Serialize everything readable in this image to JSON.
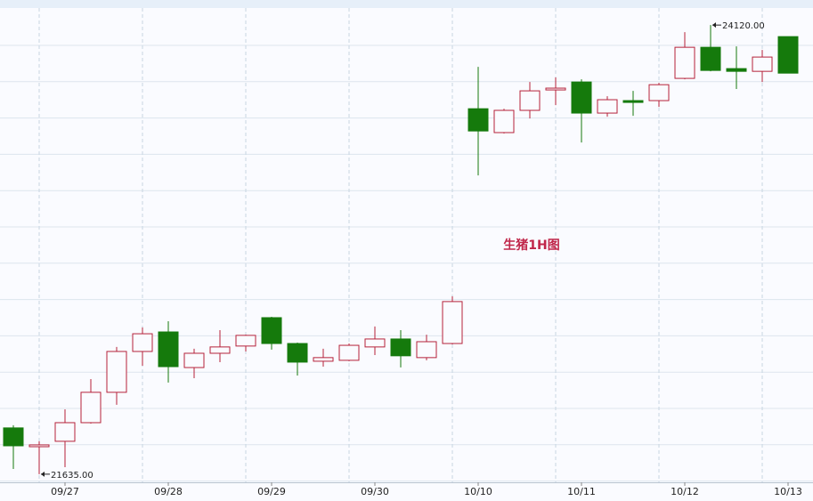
{
  "chart_data": {
    "type": "candlestick",
    "title": "生猪1H图",
    "categories": [
      null,
      null,
      "09/27",
      null,
      null,
      null,
      "09/28",
      null,
      null,
      null,
      "09/29",
      null,
      null,
      null,
      "09/30",
      null,
      null,
      null,
      "10/10",
      null,
      null,
      null,
      "10/11",
      null,
      null,
      null,
      "10/12",
      null,
      null,
      null,
      "10/13"
    ],
    "series": [
      {
        "open": [
          21891,
          21787,
          21817,
          21920,
          22088,
          22314,
          22422,
          22225,
          22304,
          22344,
          22501,
          22358,
          22260,
          22265,
          22339,
          22383,
          22280,
          22358,
          23657,
          23525,
          23648,
          23761,
          23805,
          23633,
          23702,
          23702,
          23825,
          23997,
          23879,
          23864,
          24056
        ],
        "high": [
          21906,
          21817,
          21994,
          22161,
          22339,
          22447,
          22481,
          22329,
          22432,
          22407,
          22506,
          22363,
          22329,
          22358,
          22452,
          22432,
          22407,
          22619,
          23889,
          23657,
          23805,
          23830,
          23820,
          23726,
          23756,
          23800,
          24081,
          24120,
          24002,
          23982,
          24056
        ],
        "low": [
          21664,
          21635,
          21674,
          21915,
          22019,
          22235,
          22142,
          22166,
          22255,
          22314,
          22324,
          22181,
          22230,
          22260,
          22294,
          22226,
          22265,
          22353,
          23288,
          23520,
          23603,
          23677,
          23470,
          23613,
          23618,
          23667,
          23820,
          23864,
          23766,
          23805,
          23854
        ],
        "close": [
          21792,
          21797,
          21920,
          22088,
          22314,
          22412,
          22230,
          22304,
          22339,
          22403,
          22358,
          22255,
          22280,
          22348,
          22383,
          22290,
          22368,
          22590,
          23534,
          23648,
          23756,
          23771,
          23633,
          23707,
          23692,
          23790,
          23997,
          23869,
          23864,
          23943,
          23854
        ]
      }
    ],
    "up_color": "#b5223a",
    "down_color": "#157a0c",
    "max_label": "24120.00",
    "min_label": "21635.00",
    "ylim": [
      21590,
      24170
    ]
  }
}
